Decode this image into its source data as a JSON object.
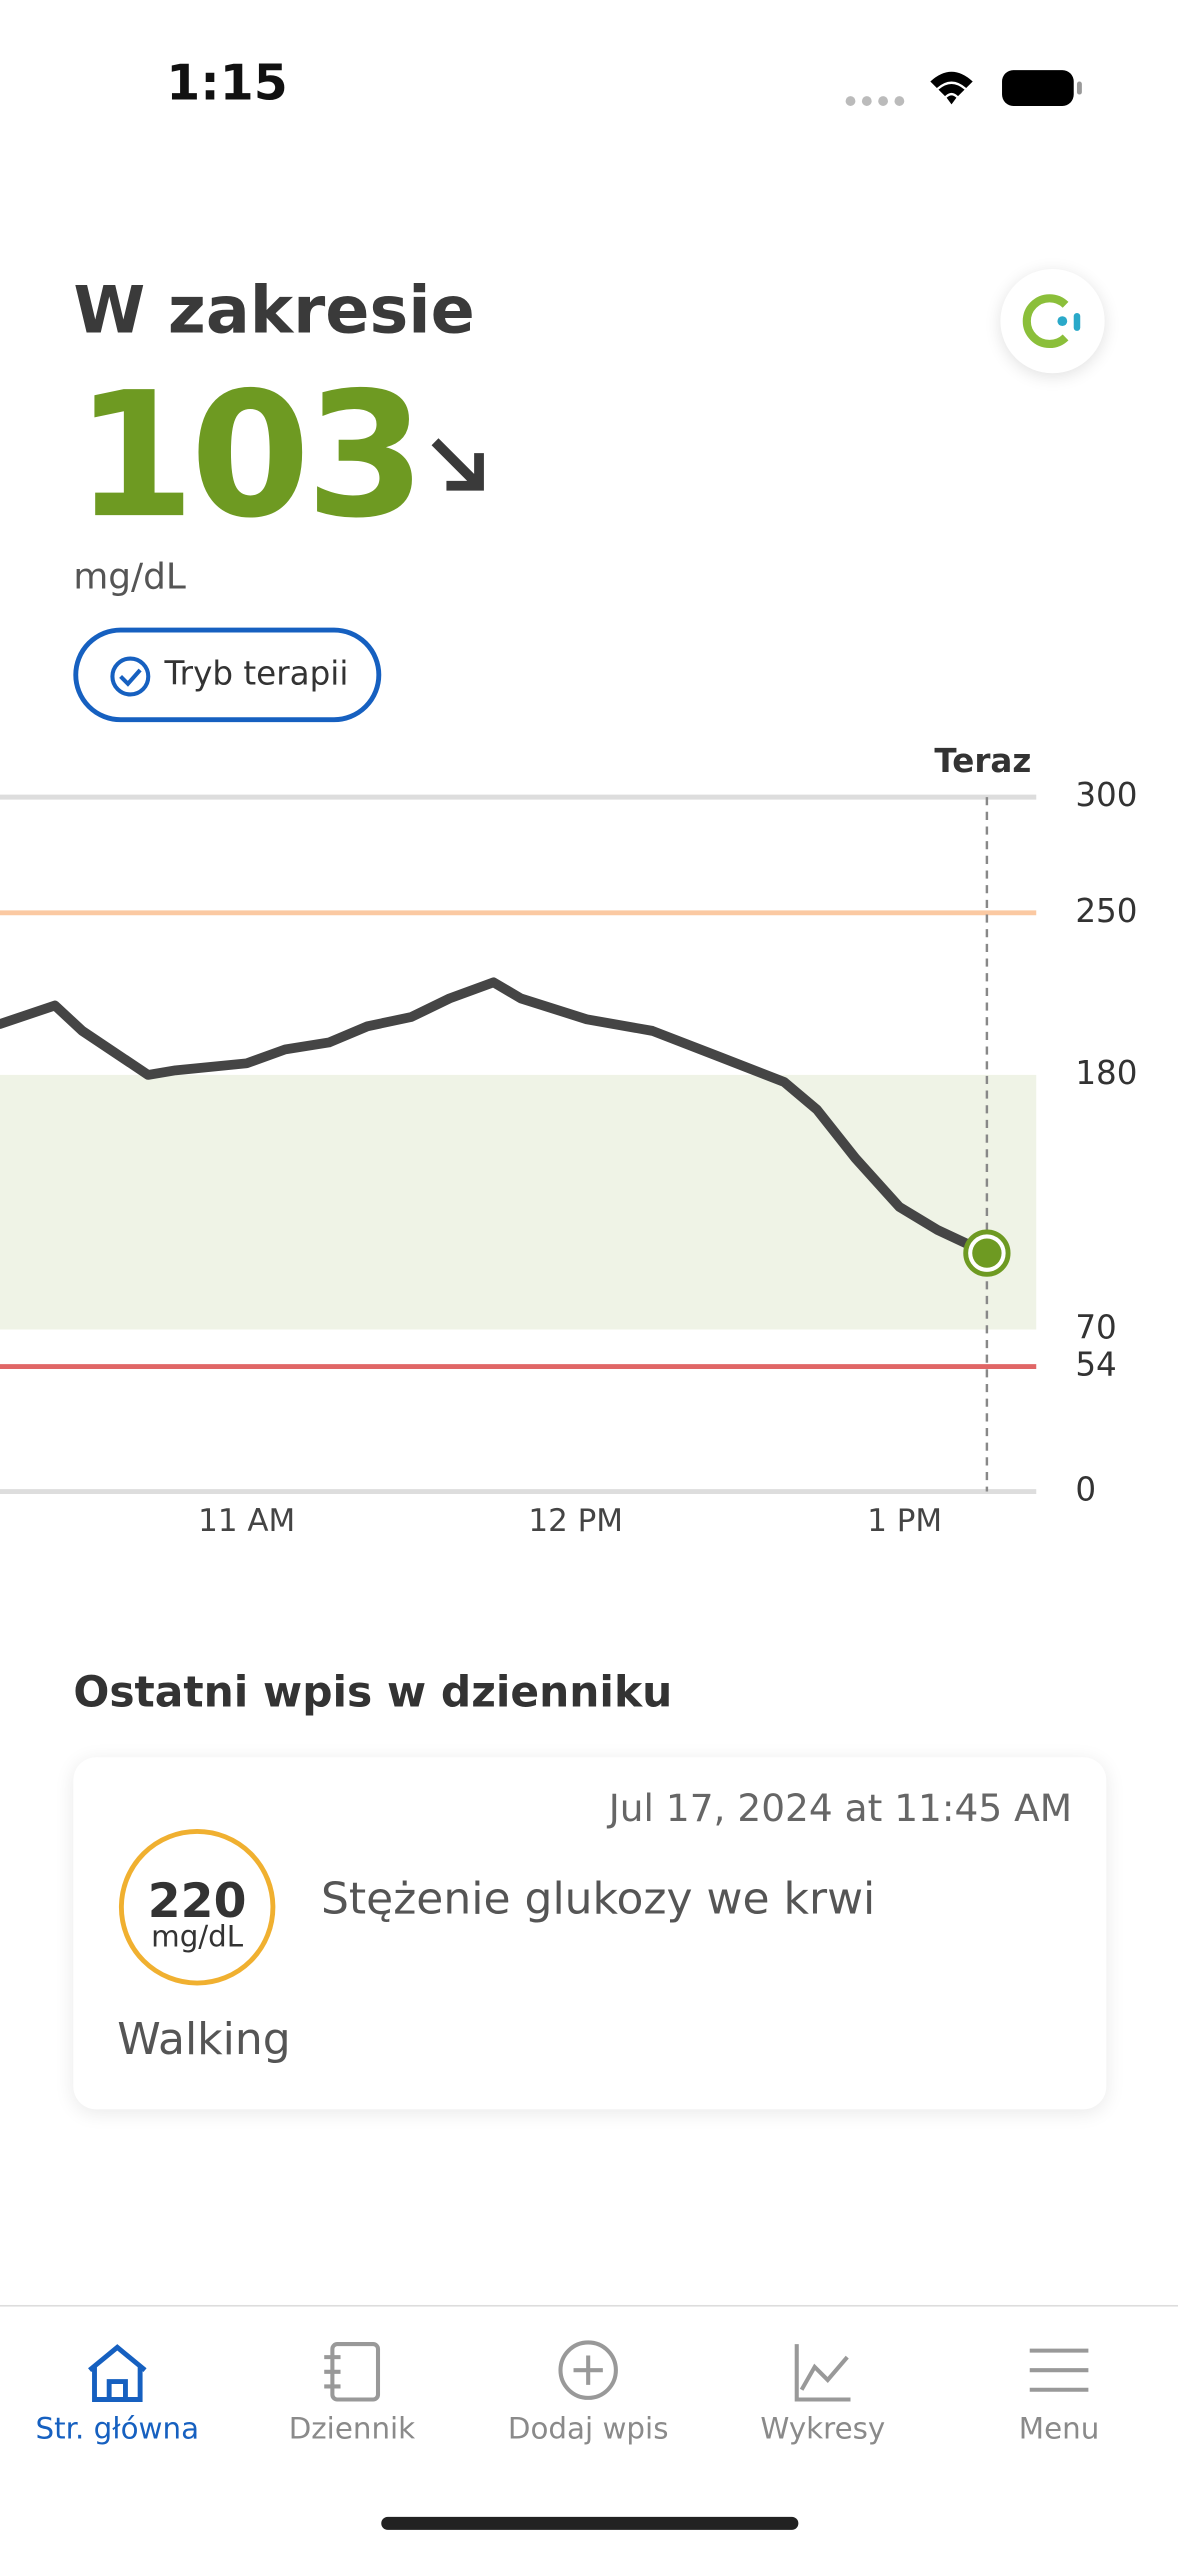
{
  "status_bar": {
    "time": "1:15"
  },
  "header": {
    "status": "W zakresie",
    "value": 103,
    "unit": "mg/dL",
    "mode_button": "Tryb terapii"
  },
  "chart_data": {
    "type": "line",
    "color": "#454545",
    "x": [
      615,
      625,
      630,
      642,
      647,
      660,
      667,
      675,
      682,
      690,
      697,
      705,
      710,
      722,
      734,
      746,
      758,
      764,
      771,
      779,
      786,
      795
    ],
    "values": [
      202,
      210,
      199,
      180,
      182,
      185,
      191,
      194,
      201,
      205,
      213,
      220,
      213,
      204,
      199,
      188,
      177,
      165,
      144,
      123,
      113,
      103
    ],
    "xlim": [
      615,
      804
    ],
    "xticks": [
      {
        "value": 660,
        "label": "11 AM"
      },
      {
        "value": 720,
        "label": "12 PM"
      },
      {
        "value": 780,
        "label": "1 PM"
      }
    ],
    "ylim": [
      0,
      300
    ],
    "yticks": [
      0,
      54,
      70,
      180,
      250,
      300
    ],
    "now_label": "Teraz",
    "now_x": 795,
    "target_range": [
      70,
      180
    ],
    "high_line": 250,
    "low_line": 54
  },
  "last_entry": {
    "title": "Ostatni wpis w dzienniku",
    "date": "Jul 17, 2024 at 11:45 AM",
    "value": 220,
    "unit": "mg/dL",
    "label": "Stężenie glukozy we krwi",
    "note": "Walking"
  },
  "nav": {
    "items": [
      "Str. główna",
      "Dziennik",
      "Dodaj wpis",
      "Wykresy",
      "Menu"
    ]
  }
}
